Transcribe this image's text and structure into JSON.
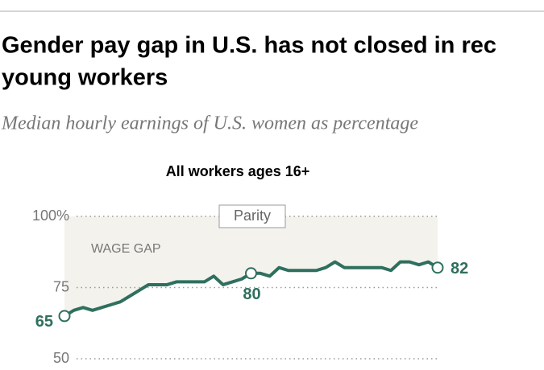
{
  "chart_data": {
    "type": "line",
    "title_lines": [
      "Gender pay gap in U.S. has not closed in rec",
      "young workers"
    ],
    "subtitle": "Median hourly earnings of U.S. women as percentage",
    "panel_title": "All workers ages 16+",
    "annotations": [
      "Parity",
      "WAGE GAP"
    ],
    "values": [
      65,
      67,
      68,
      67,
      68,
      69,
      70,
      72,
      74,
      76,
      76,
      76,
      77,
      77,
      77,
      77,
      79,
      76,
      77,
      78,
      80,
      80,
      79,
      82,
      81,
      81,
      81,
      81,
      82,
      84,
      82,
      82,
      82,
      82,
      82,
      81,
      84,
      84,
      83,
      84,
      82
    ],
    "marked_points": [
      0,
      20,
      40
    ],
    "color": "#2f6f5e",
    "ylim": [
      50,
      100
    ],
    "yticks": [
      50,
      75,
      {
        "value": 100,
        "label": "100%"
      }
    ],
    "grid": true
  }
}
